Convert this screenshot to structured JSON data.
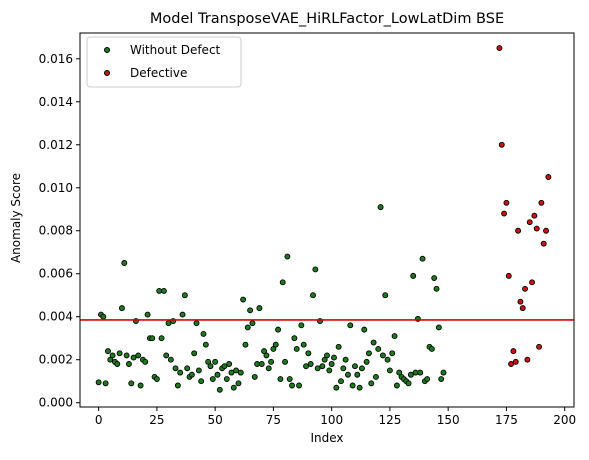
{
  "chart_data": {
    "type": "scatter",
    "title": "Model TransposeVAE_HiRLFactor_LowLatDim BSE",
    "xlabel": "Index",
    "ylabel": "Anomaly Score",
    "xlim": [
      -8,
      204
    ],
    "ylim": [
      -0.0002,
      0.0172
    ],
    "x_ticks": [
      0,
      25,
      50,
      75,
      100,
      125,
      150,
      175,
      200
    ],
    "y_ticks": [
      0.0,
      0.002,
      0.004,
      0.006,
      0.008,
      0.01,
      0.012,
      0.014,
      0.016
    ],
    "y_tick_labels": [
      "0.000",
      "0.002",
      "0.004",
      "0.006",
      "0.008",
      "0.010",
      "0.012",
      "0.014",
      "0.016"
    ],
    "grid": false,
    "legend_position": "top-left",
    "threshold": {
      "y": 0.00385,
      "color": "#e00000"
    },
    "series": [
      {
        "name": "Without Defect",
        "color": "#1e7a1e",
        "points": [
          [
            0,
            0.00095
          ],
          [
            1,
            0.0041
          ],
          [
            2,
            0.004
          ],
          [
            3,
            0.0009
          ],
          [
            4,
            0.0024
          ],
          [
            5,
            0.002
          ],
          [
            6,
            0.0022
          ],
          [
            7,
            0.0019
          ],
          [
            8,
            0.0018
          ],
          [
            9,
            0.0023
          ],
          [
            10,
            0.0044
          ],
          [
            11,
            0.0065
          ],
          [
            12,
            0.0022
          ],
          [
            13,
            0.0018
          ],
          [
            14,
            0.0009
          ],
          [
            15,
            0.0021
          ],
          [
            16,
            0.0038
          ],
          [
            17,
            0.0022
          ],
          [
            18,
            0.0008
          ],
          [
            19,
            0.002
          ],
          [
            20,
            0.0019
          ],
          [
            21,
            0.0041
          ],
          [
            22,
            0.003
          ],
          [
            23,
            0.003
          ],
          [
            24,
            0.0012
          ],
          [
            25,
            0.0011
          ],
          [
            26,
            0.0052
          ],
          [
            27,
            0.003
          ],
          [
            28,
            0.0052
          ],
          [
            29,
            0.0022
          ],
          [
            30,
            0.0037
          ],
          [
            31,
            0.002
          ],
          [
            32,
            0.0038
          ],
          [
            33,
            0.0016
          ],
          [
            34,
            0.0008
          ],
          [
            35,
            0.0014
          ],
          [
            36,
            0.0041
          ],
          [
            37,
            0.005
          ],
          [
            38,
            0.0016
          ],
          [
            39,
            0.0012
          ],
          [
            40,
            0.0013
          ],
          [
            41,
            0.0023
          ],
          [
            42,
            0.0037
          ],
          [
            43,
            0.0015
          ],
          [
            44,
            0.001
          ],
          [
            45,
            0.0032
          ],
          [
            46,
            0.0027
          ],
          [
            47,
            0.0019
          ],
          [
            48,
            0.0017
          ],
          [
            49,
            0.0011
          ],
          [
            50,
            0.0019
          ],
          [
            51,
            0.0013
          ],
          [
            52,
            0.0006
          ],
          [
            53,
            0.0016
          ],
          [
            54,
            0.0017
          ],
          [
            55,
            0.0011
          ],
          [
            56,
            0.0018
          ],
          [
            57,
            0.0014
          ],
          [
            58,
            0.0007
          ],
          [
            59,
            0.0015
          ],
          [
            60,
            0.0009
          ],
          [
            61,
            0.0014
          ],
          [
            62,
            0.0048
          ],
          [
            63,
            0.0027
          ],
          [
            64,
            0.0035
          ],
          [
            65,
            0.0043
          ],
          [
            66,
            0.0037
          ],
          [
            67,
            0.0012
          ],
          [
            68,
            0.0018
          ],
          [
            69,
            0.0044
          ],
          [
            70,
            0.0018
          ],
          [
            71,
            0.0024
          ],
          [
            72,
            0.0022
          ],
          [
            73,
            0.0016
          ],
          [
            74,
            0.0019
          ],
          [
            75,
            0.0025
          ],
          [
            76,
            0.0027
          ],
          [
            77,
            0.0034
          ],
          [
            78,
            0.0011
          ],
          [
            79,
            0.0056
          ],
          [
            80,
            0.0019
          ],
          [
            81,
            0.0068
          ],
          [
            82,
            0.0011
          ],
          [
            83,
            0.0008
          ],
          [
            84,
            0.003
          ],
          [
            85,
            0.0025
          ],
          [
            86,
            0.0008
          ],
          [
            87,
            0.0036
          ],
          [
            88,
            0.0027
          ],
          [
            89,
            0.0017
          ],
          [
            90,
            0.0023
          ],
          [
            91,
            0.0018
          ],
          [
            92,
            0.005
          ],
          [
            93,
            0.0062
          ],
          [
            94,
            0.0016
          ],
          [
            95,
            0.0038
          ],
          [
            96,
            0.0017
          ],
          [
            97,
            0.002
          ],
          [
            98,
            0.0022
          ],
          [
            99,
            0.0015
          ],
          [
            100,
            0.0018
          ],
          [
            101,
            0.0021
          ],
          [
            102,
            0.0007
          ],
          [
            103,
            0.0026
          ],
          [
            104,
            0.001
          ],
          [
            105,
            0.0016
          ],
          [
            106,
            0.002
          ],
          [
            107,
            0.0013
          ],
          [
            108,
            0.0036
          ],
          [
            109,
            0.0008
          ],
          [
            110,
            0.0017
          ],
          [
            111,
            0.0013
          ],
          [
            112,
            0.0007
          ],
          [
            113,
            0.0016
          ],
          [
            114,
            0.0034
          ],
          [
            115,
            0.0019
          ],
          [
            116,
            0.0023
          ],
          [
            117,
            0.0009
          ],
          [
            118,
            0.0028
          ],
          [
            119,
            0.0012
          ],
          [
            120,
            0.0025
          ],
          [
            121,
            0.0091
          ],
          [
            122,
            0.0022
          ],
          [
            123,
            0.005
          ],
          [
            124,
            0.002
          ],
          [
            125,
            0.0015
          ],
          [
            126,
            0.0023
          ],
          [
            127,
            0.0031
          ],
          [
            128,
            0.0008
          ],
          [
            129,
            0.0014
          ],
          [
            130,
            0.0012
          ],
          [
            131,
            0.0011
          ],
          [
            132,
            0.001
          ],
          [
            133,
            0.0009
          ],
          [
            134,
            0.0013
          ],
          [
            135,
            0.0059
          ],
          [
            136,
            0.0014
          ],
          [
            137,
            0.0039
          ],
          [
            138,
            0.0014
          ],
          [
            139,
            0.0067
          ],
          [
            140,
            0.001
          ],
          [
            141,
            0.0011
          ],
          [
            142,
            0.0026
          ],
          [
            143,
            0.0025
          ],
          [
            144,
            0.0058
          ],
          [
            145,
            0.0053
          ],
          [
            146,
            0.0035
          ],
          [
            147,
            0.0011
          ],
          [
            148,
            0.0014
          ]
        ]
      },
      {
        "name": "Defective",
        "color": "#cc1111",
        "points": [
          [
            172,
            0.0165
          ],
          [
            173,
            0.012
          ],
          [
            174,
            0.0088
          ],
          [
            175,
            0.0093
          ],
          [
            176,
            0.0059
          ],
          [
            177,
            0.0018
          ],
          [
            178,
            0.0024
          ],
          [
            179,
            0.0019
          ],
          [
            180,
            0.008
          ],
          [
            181,
            0.0047
          ],
          [
            182,
            0.0044
          ],
          [
            183,
            0.0053
          ],
          [
            184,
            0.002
          ],
          [
            185,
            0.0084
          ],
          [
            186,
            0.0056
          ],
          [
            187,
            0.0087
          ],
          [
            188,
            0.0081
          ],
          [
            189,
            0.0026
          ],
          [
            190,
            0.0093
          ],
          [
            191,
            0.0074
          ],
          [
            192,
            0.008
          ],
          [
            193,
            0.0105
          ]
        ]
      }
    ]
  }
}
